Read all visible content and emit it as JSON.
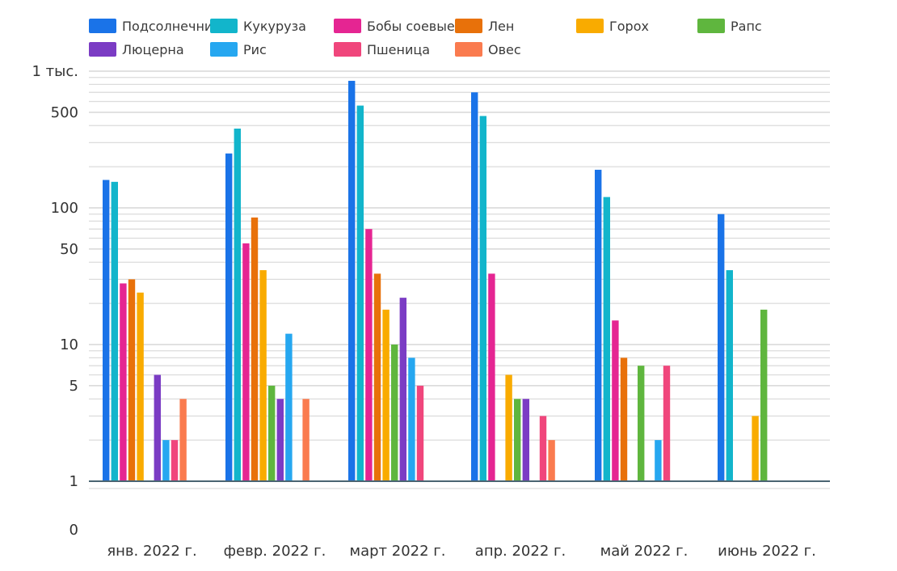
{
  "chart_data": {
    "type": "bar",
    "scale": "log",
    "grid": true,
    "legend_position": "top",
    "categories": [
      "янв. 2022 г.",
      "февр. 2022 г.",
      "март 2022 г.",
      "апр. 2022 г.",
      "май 2022 г.",
      "июнь 2022 г."
    ],
    "y_tick_labels": [
      "0",
      "1",
      "5",
      "10",
      "50",
      "100",
      "500",
      "1 тыс."
    ],
    "y_tick_values": [
      0,
      1,
      5,
      10,
      50,
      100,
      500,
      1000
    ],
    "series": [
      {
        "name": "Подсолнечник",
        "color": "#1a73e8",
        "values": [
          160,
          250,
          850,
          700,
          190,
          90
        ]
      },
      {
        "name": "Кукуруза",
        "color": "#12b5cb",
        "values": [
          155,
          380,
          560,
          470,
          120,
          35
        ]
      },
      {
        "name": "Бобы соевые",
        "color": "#e52592",
        "values": [
          28,
          55,
          70,
          33,
          15,
          null
        ]
      },
      {
        "name": "Лен",
        "color": "#e8710a",
        "values": [
          30,
          85,
          33,
          null,
          8,
          null
        ]
      },
      {
        "name": "Горох",
        "color": "#f9ab00",
        "values": [
          24,
          35,
          18,
          6,
          null,
          3
        ]
      },
      {
        "name": "Рапс",
        "color": "#5fb63e",
        "values": [
          null,
          5,
          10,
          4,
          7,
          18
        ]
      },
      {
        "name": "Люцерна",
        "color": "#7b3cc4",
        "values": [
          6,
          4,
          22,
          4,
          null,
          null
        ]
      },
      {
        "name": "Рис",
        "color": "#26a7f0",
        "values": [
          2,
          12,
          8,
          null,
          2,
          null
        ]
      },
      {
        "name": "Пшеница",
        "color": "#f0467c",
        "values": [
          2,
          null,
          5,
          3,
          7,
          null
        ]
      },
      {
        "name": "Овес",
        "color": "#fa7b4f",
        "values": [
          4,
          4,
          null,
          2,
          null,
          null
        ]
      }
    ]
  }
}
